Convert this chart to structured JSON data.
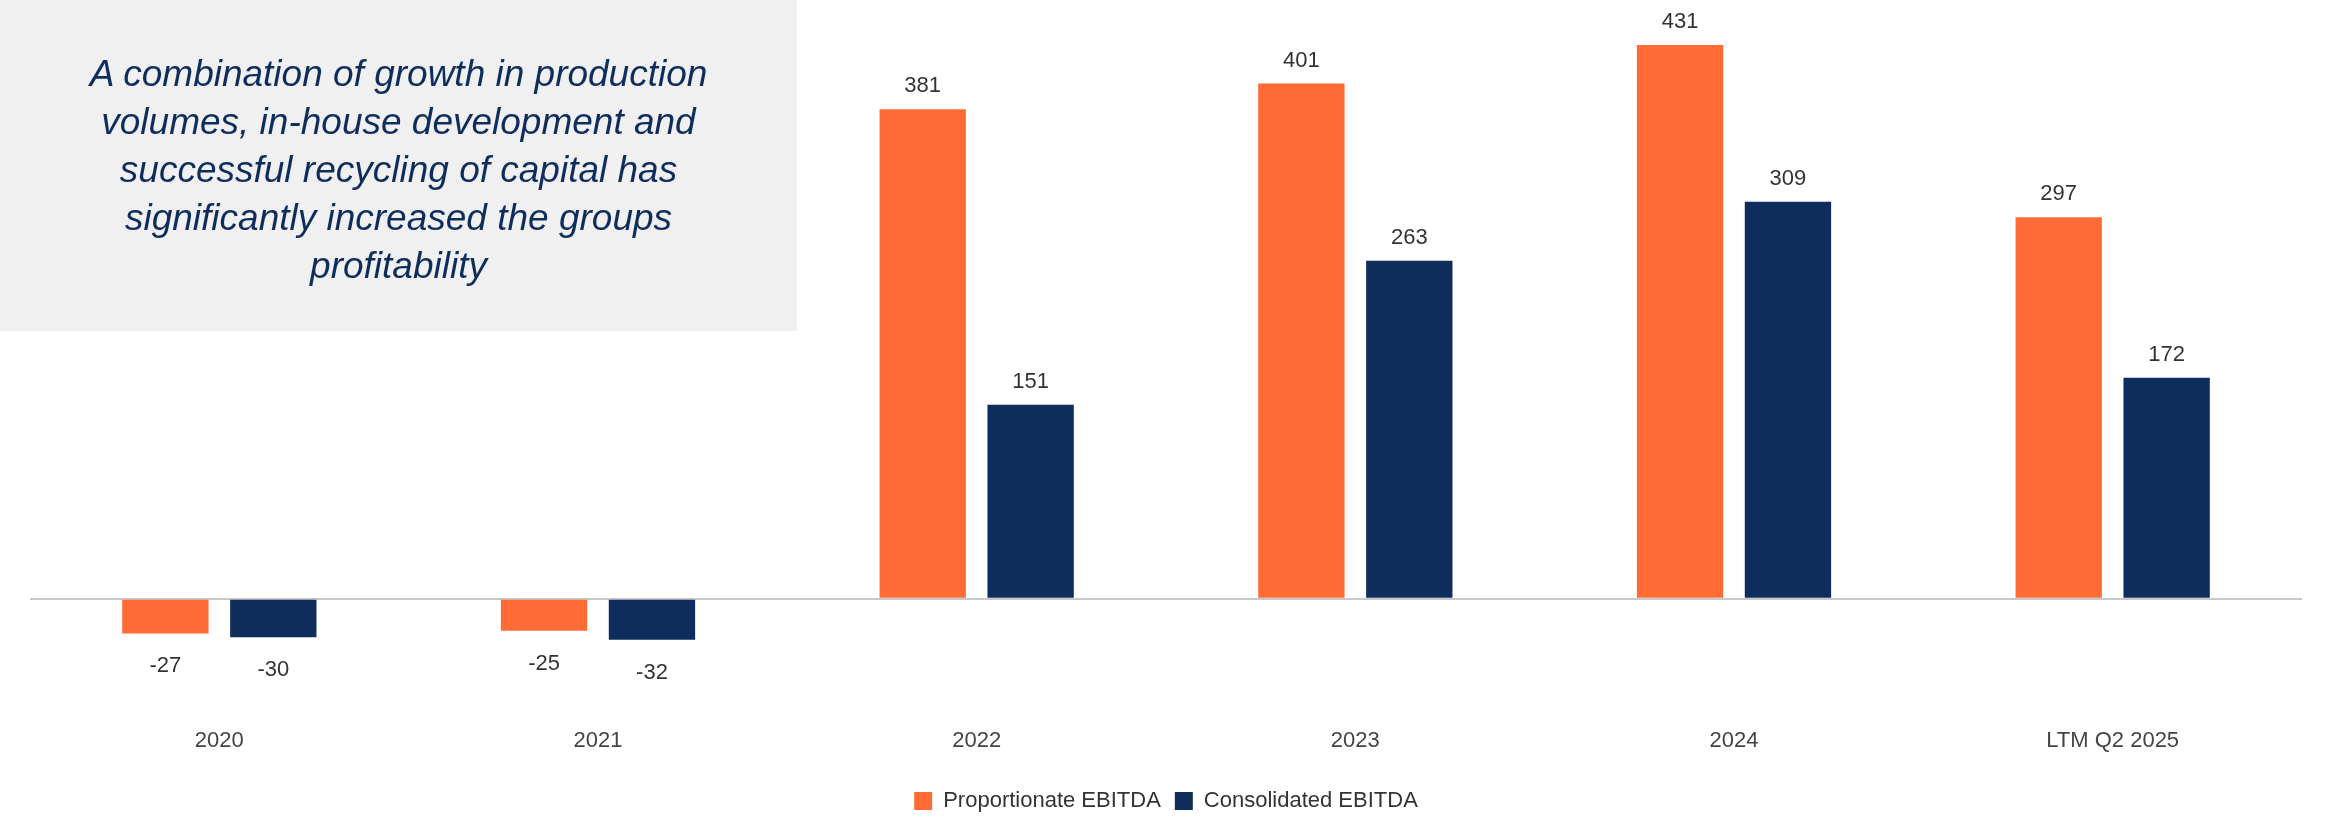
{
  "chart_data": {
    "type": "bar",
    "categories": [
      "2020",
      "2021",
      "2022",
      "2023",
      "2024",
      "LTM Q2 2025"
    ],
    "series": [
      {
        "name": "Proportionate EBITDA",
        "color": "#ff6b35",
        "values": [
          -27,
          -25,
          381,
          401,
          431,
          297
        ]
      },
      {
        "name": "Consolidated EBITDA",
        "color": "#0e2d5c",
        "values": [
          -30,
          -32,
          151,
          263,
          309,
          172
        ]
      }
    ],
    "data_labels": true,
    "legend": "bottom",
    "grid": false,
    "annotations": [
      "A combination of growth in production volumes, in-house development and successful recycling of capital has significantly increased the groups profitability"
    ]
  }
}
